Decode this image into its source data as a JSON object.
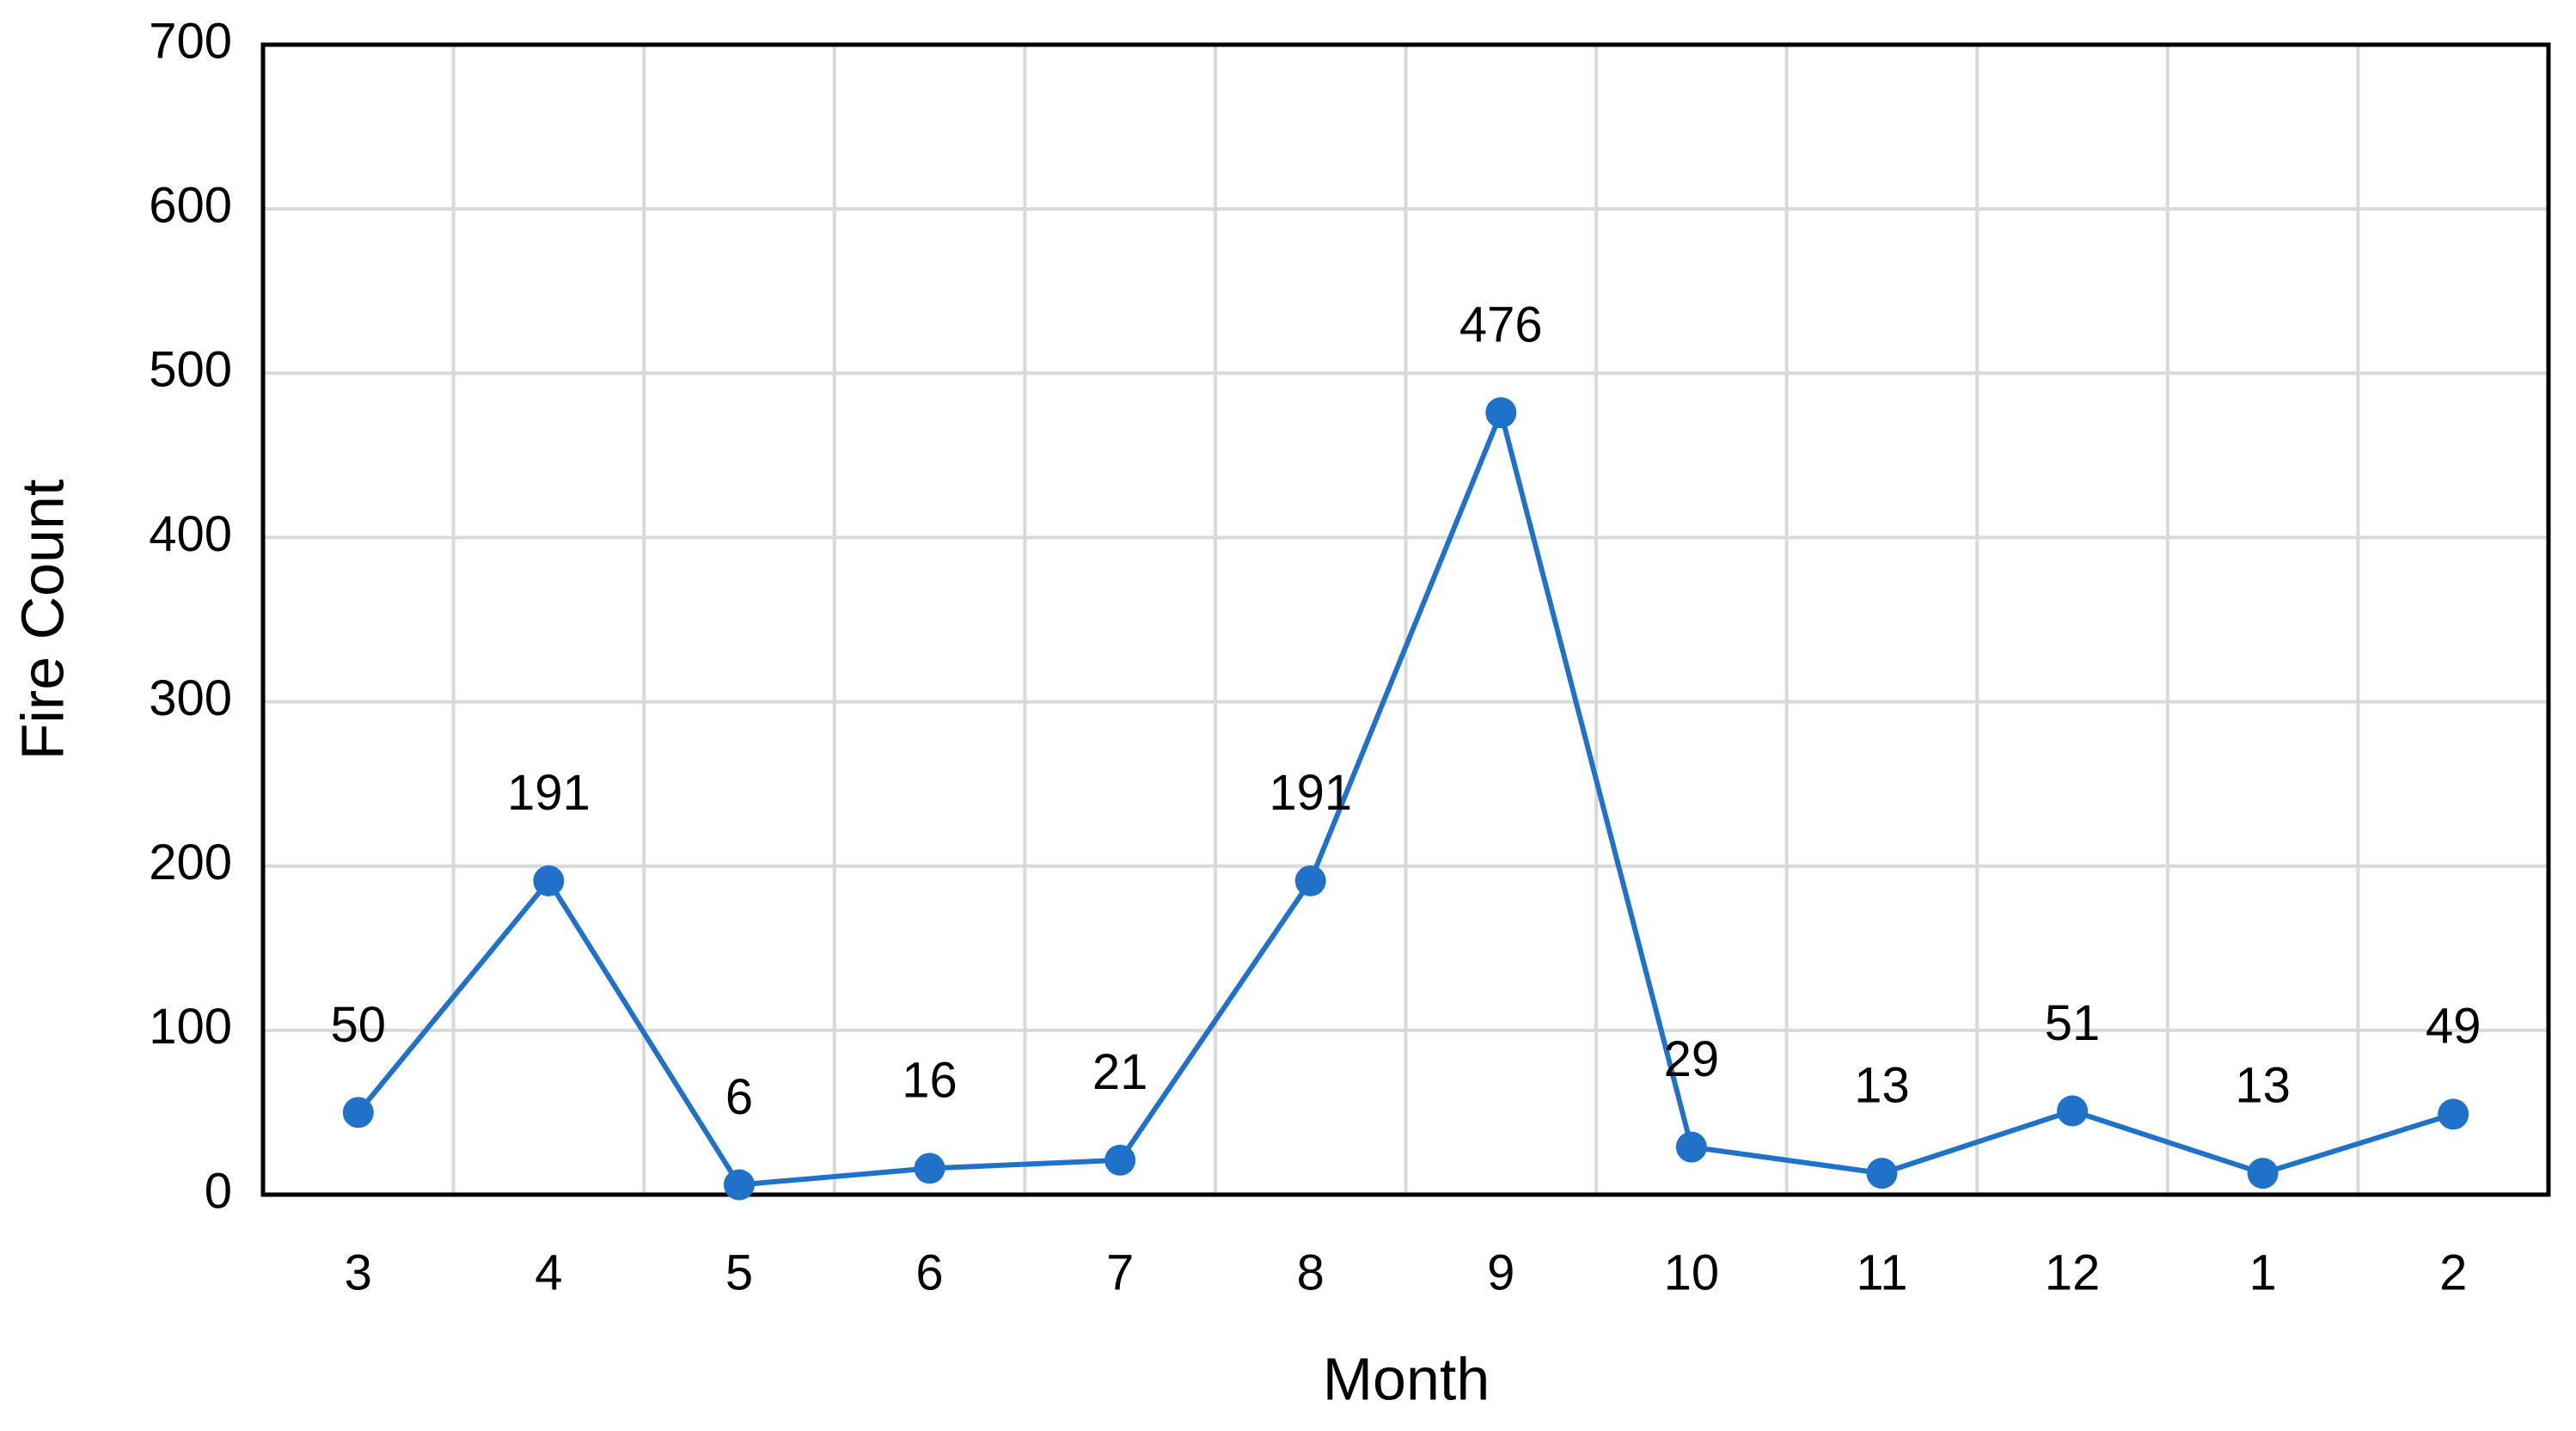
{
  "chart_data": {
    "type": "line",
    "x_label": "Month",
    "y_label": "Fire Count",
    "categories": [
      "3",
      "4",
      "5",
      "6",
      "7",
      "8",
      "9",
      "10",
      "11",
      "12",
      "1",
      "2"
    ],
    "series": [
      {
        "name": "Fire Count",
        "color": "#1f72c8",
        "values": [
          50,
          191,
          6,
          16,
          21,
          191,
          476,
          29,
          13,
          51,
          13,
          49
        ]
      }
    ],
    "ylim": [
      0,
      700
    ],
    "yticks": [
      0,
      100,
      200,
      300,
      400,
      500,
      600,
      700
    ],
    "grid": true
  }
}
